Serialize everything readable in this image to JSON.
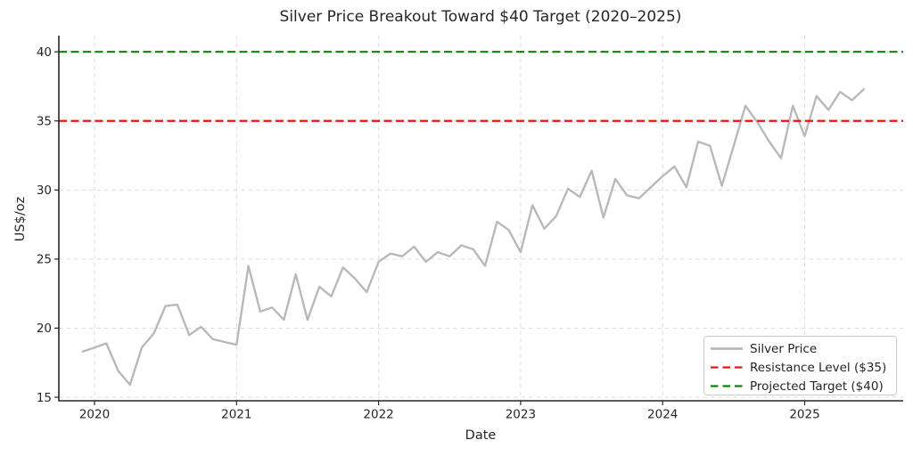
{
  "chart_data": {
    "type": "line",
    "title": "Silver Price Breakout Toward $40 Target (2020–2025)",
    "xlabel": "Date",
    "ylabel": "US$/oz",
    "x_tick_labels": [
      "2020",
      "2021",
      "2022",
      "2023",
      "2024",
      "2025"
    ],
    "y_ticks": [
      15,
      20,
      25,
      30,
      35,
      40
    ],
    "ylim": [
      14.7,
      41.3
    ],
    "grid": true,
    "grid_style": "light-gray dashed",
    "legend_position": "lower right",
    "frequency": "monthly",
    "x_start": "2019-12",
    "x_end": "2025-06",
    "series": [
      {
        "name": "Silver Price",
        "style": "solid",
        "color": "#b9b9b9",
        "values": [
          18.3,
          18.6,
          18.9,
          16.9,
          15.9,
          18.6,
          19.6,
          21.6,
          21.7,
          19.5,
          20.1,
          19.2,
          19.0,
          18.8,
          24.5,
          21.2,
          21.5,
          20.6,
          23.9,
          20.6,
          23.0,
          22.3,
          24.4,
          23.6,
          22.6,
          24.8,
          25.4,
          25.2,
          25.9,
          24.8,
          25.5,
          25.2,
          26.0,
          25.7,
          24.5,
          27.7,
          27.1,
          25.5,
          28.9,
          27.2,
          28.1,
          30.1,
          29.5,
          31.4,
          28.0,
          30.8,
          29.6,
          29.4,
          30.2,
          31.0,
          31.7,
          30.2,
          33.5,
          33.2,
          30.3,
          33.2,
          36.1,
          34.9,
          33.5,
          32.3,
          36.1,
          33.9,
          36.8,
          35.8,
          37.1,
          36.5,
          37.3
        ]
      },
      {
        "name": "Resistance Level ($35)",
        "style": "dashed",
        "color": "#f21111",
        "value": 35
      },
      {
        "name": "Projected Target ($40)",
        "style": "dashed",
        "color": "#0e840e",
        "value": 40
      }
    ],
    "text_color": "#262626",
    "spine_color": "#262626",
    "gridline_color": "#dddddd",
    "background_color": "#ffffff"
  }
}
